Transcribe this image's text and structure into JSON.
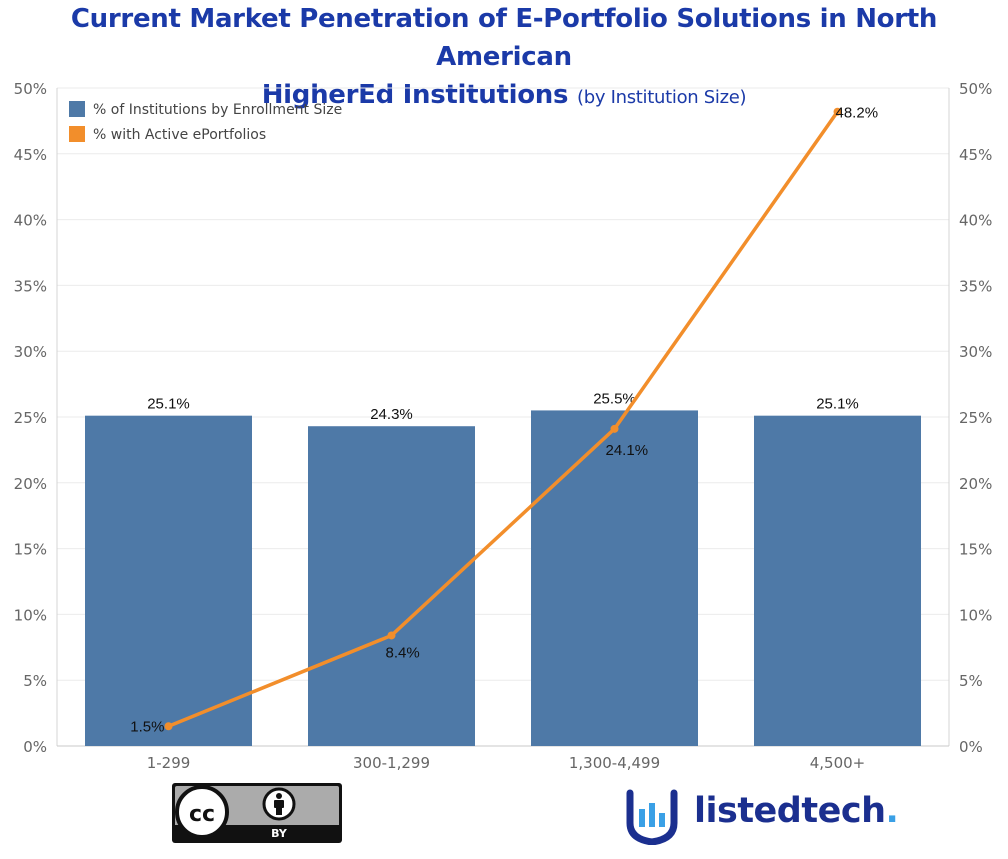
{
  "title": {
    "line1": "Current Market Penetration of E-Portfolio Solutions in North American",
    "line2": "HigherEd Institutions",
    "subtitle": "(by Institution Size)"
  },
  "colors": {
    "title": "#1b3aa8",
    "bar": "#4e79a7",
    "line": "#f28e2b",
    "grid": "#ebebeb",
    "axis_text": "#666666",
    "label_text": "#111111"
  },
  "chart_data": {
    "type": "bar",
    "categories": [
      "1-299",
      "300-1,299",
      "1,300-4,499",
      "4,500+"
    ],
    "series": [
      {
        "name": "% of Institutions by Enrollment Size",
        "kind": "bar",
        "values": [
          25.1,
          24.3,
          25.5,
          25.1
        ],
        "labels": [
          "25.1%",
          "24.3%",
          "25.5%",
          "25.1%"
        ]
      },
      {
        "name": "% with Active ePortfolios",
        "kind": "line",
        "values": [
          1.5,
          8.4,
          24.1,
          48.2
        ],
        "labels": [
          "1.5%",
          "8.4%",
          "24.1%",
          "48.2%"
        ]
      }
    ],
    "y_ticks": [
      "0%",
      "5%",
      "10%",
      "15%",
      "20%",
      "25%",
      "30%",
      "35%",
      "40%",
      "45%",
      "50%"
    ],
    "ylim": [
      0,
      50
    ],
    "y2lim": [
      0,
      50
    ],
    "grid": true,
    "legend_position": "top-left"
  },
  "footer": {
    "license_by": "BY",
    "license_icon": "creative-commons-icon",
    "logo_text_a": "listedtech",
    "logo_text_b": ".",
    "logo_icon": "bar-chart-shield-icon"
  }
}
